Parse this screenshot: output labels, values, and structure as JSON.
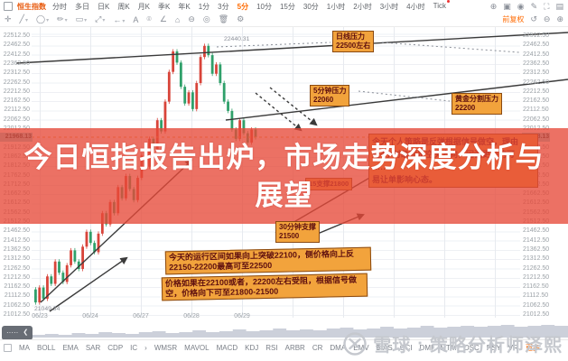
{
  "toolbar": {
    "symbol": "恒生指数",
    "periods": [
      "分时",
      "多日",
      "日K",
      "周K",
      "月K",
      "季K",
      "年K",
      "1分",
      "3分",
      "5分",
      "10分",
      "15分",
      "30分",
      "1小时",
      "2小时",
      "3小时",
      "4小时",
      "Tick"
    ],
    "active_period": "5分",
    "badge_period": "Tick",
    "right_icons": [
      "⊕",
      "▣",
      "◉",
      "✎",
      "⛶",
      "▤"
    ]
  },
  "drawbar": {
    "tools": [
      "✛",
      "╱",
      "◯",
      "✏",
      "▭",
      "⤢",
      "←",
      "A",
      "⌾",
      "∠",
      "⌂",
      "⊖",
      "◎",
      "🗑",
      "⚙"
    ],
    "dropdown_tools": [
      1,
      2,
      3,
      4,
      5,
      6
    ],
    "adjust_label": "前复权",
    "right_icons": [
      "↺",
      "⊖",
      "⊕"
    ]
  },
  "chart": {
    "y_axis": [
      "22512.50",
      "22462.50",
      "22412.50",
      "22362.50",
      "22312.50",
      "22262.50",
      "22212.50",
      "22162.50",
      "22112.50",
      "22062.50",
      "22012.50",
      "21962.50",
      "21912.50",
      "21862.50",
      "21812.50",
      "21762.50",
      "21712.50",
      "21662.50",
      "21612.50",
      "21562.50",
      "21512.50",
      "21462.50",
      "21412.50",
      "21362.50",
      "21312.50",
      "21262.50",
      "21212.50",
      "21162.50",
      "21112.50",
      "21062.50",
      "21012.50"
    ],
    "current_price": "21968.13",
    "high_label": "22440.31",
    "low_label": "21049.34",
    "x_axis": [
      "06/23",
      "06/24",
      "06/27",
      "06/28",
      "06/29"
    ],
    "x_centers": [
      44,
      100,
      156,
      212,
      268
    ],
    "series": [
      21150,
      21080,
      21160,
      21100,
      21220,
      21180,
      21300,
      21240,
      21190,
      21280,
      21360,
      21300,
      21260,
      21380,
      21460,
      21400,
      21350,
      21450,
      21560,
      21500,
      21620,
      21560,
      21700,
      21640,
      21760,
      21690,
      21630,
      21750,
      21870,
      21810,
      21960,
      21900,
      22060,
      22000,
      22160,
      22320,
      22430,
      22370,
      22240,
      22150,
      22210,
      22120,
      22260,
      22400,
      22460,
      22410,
      22310,
      22360,
      22260,
      22160,
      22110,
      22010,
      21960,
      22060,
      21990,
      21940,
      22010,
      21968
    ],
    "volume": [
      3,
      4,
      3,
      5,
      4,
      6,
      5,
      4,
      6,
      7,
      5,
      6,
      8,
      6,
      7,
      9,
      7,
      8,
      10,
      8,
      9,
      8,
      10,
      11,
      9,
      10,
      12,
      10,
      11,
      13,
      11,
      12,
      13,
      12,
      13,
      14,
      12,
      13,
      14,
      13
    ],
    "colors": {
      "up": "#d8443a",
      "down": "#2fa06a",
      "price_line": "#ef9f3f",
      "trend": "#3a3a3a"
    }
  },
  "annotations": {
    "daily_resistance_l1": "日线压力",
    "daily_resistance_l2": "22500左右",
    "m5_resistance_l1": "5分钟压力",
    "m5_resistance_l2": "22060",
    "golden_l1": "黄金分割压力",
    "golden_l2": "22200",
    "strategy_l1": "今天个人策略是反弹根据信号做空，理由",
    "strategy_l2": "是4小时级别是空头方向，回调更深的可",
    "strategy_l3": "……",
    "strategy_l4": "易让单影响心态。",
    "s15": "15支撑21800",
    "s30_l1": "30分钟支撑",
    "s30_l2": "21500",
    "range_l1": "今天的运行区间如果向上突破22100，侧价格向上反",
    "range_l2": "22150-22200最高可至22500",
    "short_l1": "价格如果在22100或者，22200左右受阻，根据信号做",
    "short_l2": "空，价格向下可至21800-21500"
  },
  "overlay": {
    "title_line1": "今日恒指报告出炉，市场走势深度分析与",
    "title_line2": "展望"
  },
  "bottom": {
    "collapsed_label": "·····",
    "collapsed_chevron": "❮",
    "indicators": [
      "MA",
      "BOLL",
      "EMA",
      "SAR",
      "CDP",
      "IC",
      "›",
      "WMSR",
      "MAVOL",
      "MACD",
      "KDJ",
      "RSI",
      "ARBR",
      "CR",
      "DMA",
      "EMV",
      "BIAS",
      "CCI",
      "DMI",
      "MTM",
      "OSC",
      "PSY",
      "VR"
    ],
    "more_label": "更多"
  },
  "watermark": {
    "text": "雪球 : 策略分析师泽熙"
  }
}
